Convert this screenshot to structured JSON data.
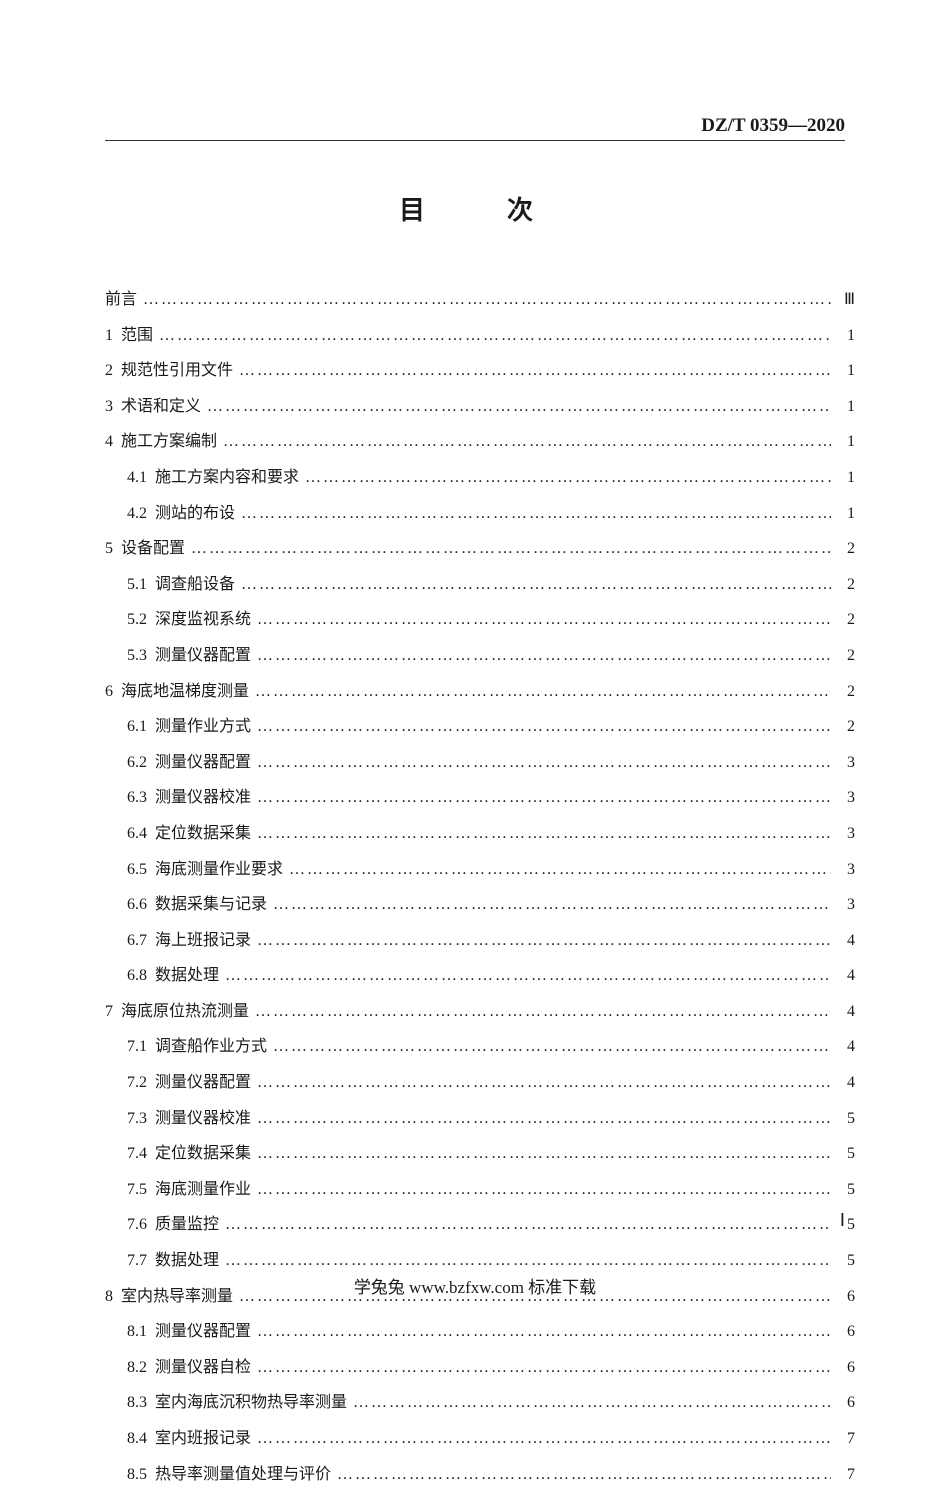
{
  "header_code": "DZ/T 0359—2020",
  "title": "目　次",
  "toc": [
    {
      "level": 0,
      "num": "",
      "text": "前言",
      "page": "Ⅲ"
    },
    {
      "level": 0,
      "num": "1",
      "text": "范围",
      "page": "1"
    },
    {
      "level": 0,
      "num": "2",
      "text": "规范性引用文件",
      "page": "1"
    },
    {
      "level": 0,
      "num": "3",
      "text": "术语和定义",
      "page": "1"
    },
    {
      "level": 0,
      "num": "4",
      "text": "施工方案编制",
      "page": "1"
    },
    {
      "level": 1,
      "num": "4.1",
      "text": "施工方案内容和要求",
      "page": "1"
    },
    {
      "level": 1,
      "num": "4.2",
      "text": "测站的布设",
      "page": "1"
    },
    {
      "level": 0,
      "num": "5",
      "text": "设备配置",
      "page": "2"
    },
    {
      "level": 1,
      "num": "5.1",
      "text": "调查船设备",
      "page": "2"
    },
    {
      "level": 1,
      "num": "5.2",
      "text": "深度监视系统",
      "page": "2"
    },
    {
      "level": 1,
      "num": "5.3",
      "text": "测量仪器配置",
      "page": "2"
    },
    {
      "level": 0,
      "num": "6",
      "text": "海底地温梯度测量",
      "page": "2"
    },
    {
      "level": 1,
      "num": "6.1",
      "text": "测量作业方式",
      "page": "2"
    },
    {
      "level": 1,
      "num": "6.2",
      "text": "测量仪器配置",
      "page": "3"
    },
    {
      "level": 1,
      "num": "6.3",
      "text": "测量仪器校准",
      "page": "3"
    },
    {
      "level": 1,
      "num": "6.4",
      "text": "定位数据采集",
      "page": "3"
    },
    {
      "level": 1,
      "num": "6.5",
      "text": "海底测量作业要求",
      "page": "3"
    },
    {
      "level": 1,
      "num": "6.6",
      "text": "数据采集与记录",
      "page": "3"
    },
    {
      "level": 1,
      "num": "6.7",
      "text": "海上班报记录",
      "page": "4"
    },
    {
      "level": 1,
      "num": "6.8",
      "text": "数据处理",
      "page": "4"
    },
    {
      "level": 0,
      "num": "7",
      "text": "海底原位热流测量",
      "page": "4"
    },
    {
      "level": 1,
      "num": "7.1",
      "text": "调查船作业方式",
      "page": "4"
    },
    {
      "level": 1,
      "num": "7.2",
      "text": "测量仪器配置",
      "page": "4"
    },
    {
      "level": 1,
      "num": "7.3",
      "text": "测量仪器校准",
      "page": "5"
    },
    {
      "level": 1,
      "num": "7.4",
      "text": "定位数据采集",
      "page": "5"
    },
    {
      "level": 1,
      "num": "7.5",
      "text": "海底测量作业",
      "page": "5"
    },
    {
      "level": 1,
      "num": "7.6",
      "text": "质量监控",
      "page": "5"
    },
    {
      "level": 1,
      "num": "7.7",
      "text": "数据处理",
      "page": "5"
    },
    {
      "level": 0,
      "num": "8",
      "text": "室内热导率测量",
      "page": "6"
    },
    {
      "level": 1,
      "num": "8.1",
      "text": "测量仪器配置",
      "page": "6"
    },
    {
      "level": 1,
      "num": "8.2",
      "text": "测量仪器自检",
      "page": "6"
    },
    {
      "level": 1,
      "num": "8.3",
      "text": "室内海底沉积物热导率测量",
      "page": "6"
    },
    {
      "level": 1,
      "num": "8.4",
      "text": "室内班报记录",
      "page": "7"
    },
    {
      "level": 1,
      "num": "8.5",
      "text": "热导率测量值处理与评价",
      "page": "7"
    }
  ],
  "page_number": "Ⅰ",
  "footer": "学兔兔 www.bzfxw.com 标准下载",
  "colors": {
    "text": "#1a1a1a",
    "background": "#ffffff"
  },
  "typography": {
    "title_fontsize": 26,
    "body_fontsize": 16,
    "header_fontsize": 19
  }
}
